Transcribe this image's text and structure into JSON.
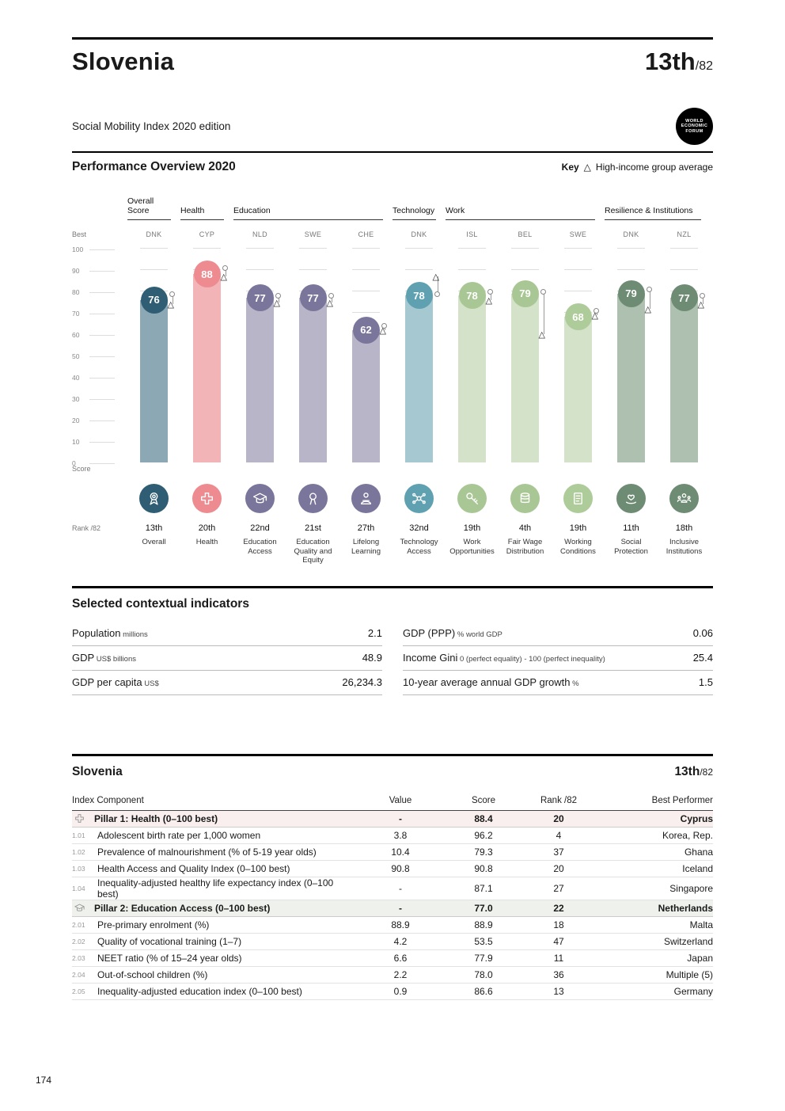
{
  "page": {
    "country": "Slovenia",
    "rank": "13th",
    "rank_total": "/82",
    "edition": "Social Mobility Index 2020 edition",
    "logo_lines": [
      "WORLD",
      "ECONOMIC",
      "FORUM"
    ],
    "page_number": "174"
  },
  "overview": {
    "title": "Performance Overview 2020",
    "key_label": "Key",
    "key_marker": "△",
    "key_item": "High-income group average",
    "axis": {
      "best": "Best",
      "score": "Score",
      "rank": "Rank /82",
      "ticks": [
        100,
        90,
        80,
        70,
        60,
        50,
        40,
        30,
        20,
        10,
        0
      ]
    },
    "groups": [
      {
        "label": "Overall Score",
        "span": 1
      },
      {
        "label": "Health",
        "span": 1
      },
      {
        "label": "Education",
        "span": 3
      },
      {
        "label": "Technology",
        "span": 1
      },
      {
        "label": "Work",
        "span": 3
      },
      {
        "label": "Resilience & Institutions",
        "span": 2
      }
    ],
    "columns": [
      {
        "best_country": "DNK",
        "score": 76,
        "rank": "13th",
        "label": "Overall",
        "icon": "medal-icon",
        "bar_color": "#8ca8b5",
        "circle_color": "#2f5e74",
        "best_val": 79,
        "hi_avg": 74
      },
      {
        "best_country": "CYP",
        "score": 88,
        "rank": "20th",
        "label": "Health",
        "icon": "health-cross-icon",
        "bar_color": "#f3b4b8",
        "circle_color": "#ee8b91",
        "best_val": 91,
        "hi_avg": 87
      },
      {
        "best_country": "NLD",
        "score": 77,
        "rank": "22nd",
        "label": "Education Access",
        "icon": "education-access-icon",
        "bar_color": "#b8b5c8",
        "circle_color": "#7a769b",
        "best_val": 78,
        "hi_avg": 75
      },
      {
        "best_country": "SWE",
        "score": 77,
        "rank": "21st",
        "label": "Education Quality and Equity",
        "icon": "education-quality-icon",
        "bar_color": "#b8b5c8",
        "circle_color": "#7a769b",
        "best_val": 78,
        "hi_avg": 75
      },
      {
        "best_country": "CHE",
        "score": 62,
        "rank": "27th",
        "label": "Lifelong Learning",
        "icon": "lifelong-learning-icon",
        "bar_color": "#b8b5c8",
        "circle_color": "#7a769b",
        "best_val": 64,
        "hi_avg": 62
      },
      {
        "best_country": "DNK",
        "score": 78,
        "rank": "32nd",
        "label": "Technology Access",
        "icon": "technology-access-icon",
        "bar_color": "#a6c9d1",
        "circle_color": "#5fa0b1",
        "best_val": 79,
        "hi_avg": 87
      },
      {
        "best_country": "ISL",
        "score": 78,
        "rank": "19th",
        "label": "Work Opportunities",
        "icon": "work-opportunities-icon",
        "bar_color": "#d3e2c9",
        "circle_color": "#a9c795",
        "best_val": 80,
        "hi_avg": 76
      },
      {
        "best_country": "BEL",
        "score": 79,
        "rank": "4th",
        "label": "Fair Wage Distribution",
        "icon": "fair-wage-icon",
        "bar_color": "#d3e2c9",
        "circle_color": "#a9c795",
        "best_val": 80,
        "hi_avg": 60
      },
      {
        "best_country": "SWE",
        "score": 68,
        "rank": "19th",
        "label": "Working Conditions",
        "icon": "working-conditions-icon",
        "bar_color": "#d3e2c9",
        "circle_color": "#aecb9a",
        "best_val": 71,
        "hi_avg": 69
      },
      {
        "best_country": "DNK",
        "score": 79,
        "rank": "11th",
        "label": "Social Protection",
        "icon": "social-protection-icon",
        "bar_color": "#aec0af",
        "circle_color": "#6e8b74",
        "best_val": 81,
        "hi_avg": 72
      },
      {
        "best_country": "NZL",
        "score": 77,
        "rank": "18th",
        "label": "Inclusive Institutions",
        "icon": "inclusive-institutions-icon",
        "bar_color": "#aec0af",
        "circle_color": "#6e8b74",
        "best_val": 78,
        "hi_avg": 74
      }
    ]
  },
  "chart_data": {
    "type": "bar",
    "title": "Performance Overview 2020",
    "categories": [
      "Overall",
      "Health",
      "Education Access",
      "Education Quality and Equity",
      "Lifelong Learning",
      "Technology Access",
      "Work Opportunities",
      "Fair Wage Distribution",
      "Working Conditions",
      "Social Protection",
      "Inclusive Institutions"
    ],
    "values": [
      76,
      88,
      77,
      77,
      62,
      78,
      78,
      79,
      68,
      79,
      77
    ],
    "ranks": [
      "13th",
      "20th",
      "22nd",
      "21st",
      "27th",
      "32nd",
      "19th",
      "4th",
      "19th",
      "11th",
      "18th"
    ],
    "best_performers": [
      "DNK",
      "CYP",
      "NLD",
      "SWE",
      "CHE",
      "DNK",
      "ISL",
      "BEL",
      "SWE",
      "DNK",
      "NZL"
    ],
    "high_income_group_average": [
      74,
      87,
      75,
      75,
      62,
      87,
      76,
      60,
      69,
      72,
      74
    ],
    "ylim": [
      0,
      100
    ],
    "ylabel": "Score",
    "legend": [
      "High-income group average"
    ]
  },
  "indicators": {
    "title": "Selected contextual indicators",
    "left": [
      {
        "label": "Population",
        "unit": "millions",
        "value": "2.1"
      },
      {
        "label": "GDP",
        "unit": "US$ billions",
        "value": "48.9"
      },
      {
        "label": "GDP per capita",
        "unit": "US$",
        "value": "26,234.3"
      }
    ],
    "right": [
      {
        "label": "GDP (PPP)",
        "unit": "% world GDP",
        "value": "0.06"
      },
      {
        "label": "Income Gini",
        "unit": "0 (perfect equality) - 100 (perfect inequality)",
        "value": "25.4"
      },
      {
        "label": "10-year average annual GDP growth",
        "unit": "%",
        "value": "1.5"
      }
    ]
  },
  "detail": {
    "country": "Slovenia",
    "rank": "13th",
    "rank_total": "/82",
    "header": [
      "Index Component",
      "Value",
      "Score",
      "Rank /82",
      "Best Performer"
    ],
    "rows": [
      {
        "type": "pillar",
        "icon": "health-cross-icon",
        "tint": "#f8efee",
        "num": "",
        "label": "Pillar 1: Health (0–100 best)",
        "value": "-",
        "score": "88.4",
        "rank": "20",
        "best": "Cyprus"
      },
      {
        "type": "row",
        "num": "1.01",
        "label": "Adolescent birth rate per 1,000 women",
        "value": "3.8",
        "score": "96.2",
        "rank": "4",
        "best": "Korea, Rep."
      },
      {
        "type": "row",
        "num": "1.02",
        "label": "Prevalence of malnourishment (% of 5-19 year olds)",
        "value": "10.4",
        "score": "79.3",
        "rank": "37",
        "best": "Ghana"
      },
      {
        "type": "row",
        "num": "1.03",
        "label": "Health Access and Quality Index (0–100 best)",
        "value": "90.8",
        "score": "90.8",
        "rank": "20",
        "best": "Iceland"
      },
      {
        "type": "row",
        "num": "1.04",
        "label": "Inequality-adjusted healthy life expectancy index (0–100 best)",
        "value": "-",
        "score": "87.1",
        "rank": "27",
        "best": "Singapore"
      },
      {
        "type": "pillar",
        "icon": "education-access-icon",
        "tint": "#eff2ec",
        "num": "",
        "label": "Pillar 2: Education Access (0–100 best)",
        "value": "-",
        "score": "77.0",
        "rank": "22",
        "best": "Netherlands"
      },
      {
        "type": "row",
        "num": "2.01",
        "label": "Pre-primary enrolment (%)",
        "value": "88.9",
        "score": "88.9",
        "rank": "18",
        "best": "Malta"
      },
      {
        "type": "row",
        "num": "2.02",
        "label": "Quality of vocational training (1–7)",
        "value": "4.2",
        "score": "53.5",
        "rank": "47",
        "best": "Switzerland"
      },
      {
        "type": "row",
        "num": "2.03",
        "label": "NEET ratio (% of 15–24 year olds)",
        "value": "6.6",
        "score": "77.9",
        "rank": "11",
        "best": "Japan"
      },
      {
        "type": "row",
        "num": "2.04",
        "label": "Out-of-school children (%)",
        "value": "2.2",
        "score": "78.0",
        "rank": "36",
        "best": "Multiple (5)"
      },
      {
        "type": "row",
        "num": "2.05",
        "label": "Inequality-adjusted education index (0–100 best)",
        "value": "0.9",
        "score": "86.6",
        "rank": "13",
        "best": "Germany"
      }
    ]
  }
}
